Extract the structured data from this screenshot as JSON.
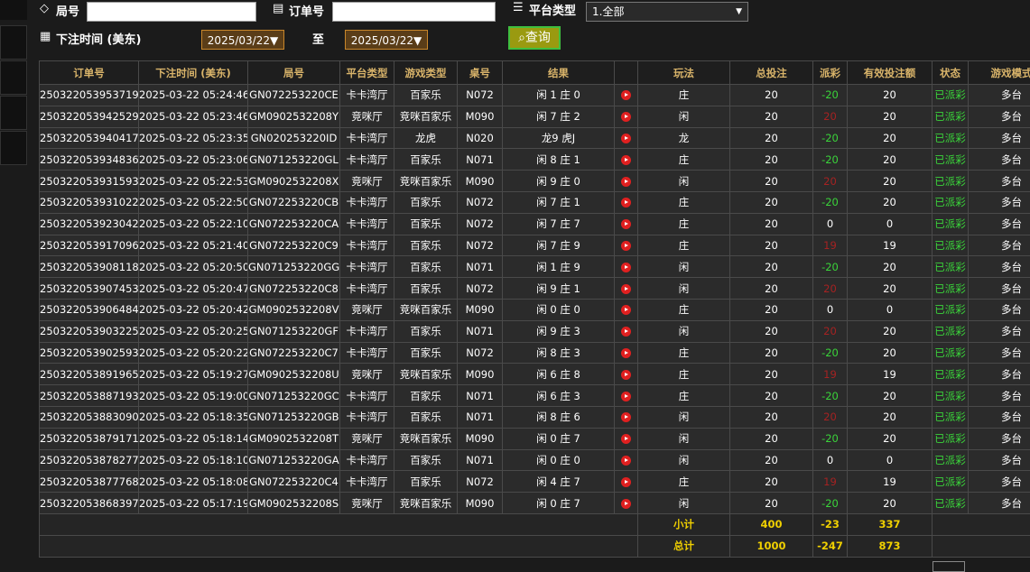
{
  "filters": {
    "round_label": "局号",
    "order_label": "订单号",
    "platform_label": "平台类型",
    "platform_value": "1.全部",
    "time_label": "下注时间 (美东)",
    "date_from": "2025/03/22▼",
    "to_label": "至",
    "date_to": "2025/03/22▼",
    "query_button": "查询"
  },
  "table": {
    "headers": [
      "订单号",
      "下注时间 (美东)",
      "局号",
      "平台类型",
      "游戏类型",
      "桌号",
      "结果",
      "玩法",
      "总投注",
      "派彩",
      "有效投注额",
      "状态",
      "游戏模式"
    ],
    "rows": [
      [
        "250322053953719",
        "2025-03-22 05:24:46",
        "GN072253220CE",
        "卡卡湾厅",
        "百家乐",
        "N072",
        "闲 1 庄 0",
        "庄",
        20,
        -20,
        20,
        "已派彩",
        "多台"
      ],
      [
        "250322053942529",
        "2025-03-22 05:23:46",
        "GM0902532208Y",
        "竞咪厅",
        "竞咪百家乐",
        "M090",
        "闲 7 庄 2",
        "闲",
        20,
        20,
        20,
        "已派彩",
        "多台"
      ],
      [
        "250322053940417",
        "2025-03-22 05:23:35",
        "GN020253220ID",
        "卡卡湾厅",
        "龙虎",
        "N020",
        "龙9 虎J",
        "龙",
        20,
        -20,
        20,
        "已派彩",
        "多台"
      ],
      [
        "250322053934836",
        "2025-03-22 05:23:06",
        "GN071253220GL",
        "卡卡湾厅",
        "百家乐",
        "N071",
        "闲 8 庄 1",
        "庄",
        20,
        -20,
        20,
        "已派彩",
        "多台"
      ],
      [
        "250322053931593",
        "2025-03-22 05:22:53",
        "GM0902532208X",
        "竞咪厅",
        "竞咪百家乐",
        "M090",
        "闲 9 庄 0",
        "闲",
        20,
        20,
        20,
        "已派彩",
        "多台"
      ],
      [
        "250322053931022",
        "2025-03-22 05:22:50",
        "GN072253220CB",
        "卡卡湾厅",
        "百家乐",
        "N072",
        "闲 7 庄 1",
        "庄",
        20,
        -20,
        20,
        "已派彩",
        "多台"
      ],
      [
        "250322053923042",
        "2025-03-22 05:22:10",
        "GN072253220CA",
        "卡卡湾厅",
        "百家乐",
        "N072",
        "闲 7 庄 7",
        "庄",
        20,
        0,
        0,
        "已派彩",
        "多台"
      ],
      [
        "250322053917096",
        "2025-03-22 05:21:40",
        "GN072253220C9",
        "卡卡湾厅",
        "百家乐",
        "N072",
        "闲 7 庄 9",
        "庄",
        20,
        19,
        19,
        "已派彩",
        "多台"
      ],
      [
        "250322053908118",
        "2025-03-22 05:20:50",
        "GN071253220GG",
        "卡卡湾厅",
        "百家乐",
        "N071",
        "闲 1 庄 9",
        "闲",
        20,
        -20,
        20,
        "已派彩",
        "多台"
      ],
      [
        "250322053907453",
        "2025-03-22 05:20:47",
        "GN072253220C8",
        "卡卡湾厅",
        "百家乐",
        "N072",
        "闲 9 庄 1",
        "闲",
        20,
        20,
        20,
        "已派彩",
        "多台"
      ],
      [
        "250322053906484",
        "2025-03-22 05:20:42",
        "GM0902532208V",
        "竞咪厅",
        "竞咪百家乐",
        "M090",
        "闲 0 庄 0",
        "庄",
        20,
        0,
        0,
        "已派彩",
        "多台"
      ],
      [
        "250322053903225",
        "2025-03-22 05:20:25",
        "GN071253220GF",
        "卡卡湾厅",
        "百家乐",
        "N071",
        "闲 9 庄 3",
        "闲",
        20,
        20,
        20,
        "已派彩",
        "多台"
      ],
      [
        "250322053902593",
        "2025-03-22 05:20:22",
        "GN072253220C7",
        "卡卡湾厅",
        "百家乐",
        "N072",
        "闲 8 庄 3",
        "庄",
        20,
        -20,
        20,
        "已派彩",
        "多台"
      ],
      [
        "250322053891965",
        "2025-03-22 05:19:27",
        "GM0902532208U",
        "竞咪厅",
        "竞咪百家乐",
        "M090",
        "闲 6 庄 8",
        "庄",
        20,
        19,
        19,
        "已派彩",
        "多台"
      ],
      [
        "250322053887193",
        "2025-03-22 05:19:00",
        "GN071253220GC",
        "卡卡湾厅",
        "百家乐",
        "N071",
        "闲 6 庄 3",
        "庄",
        20,
        -20,
        20,
        "已派彩",
        "多台"
      ],
      [
        "250322053883090",
        "2025-03-22 05:18:35",
        "GN071253220GB",
        "卡卡湾厅",
        "百家乐",
        "N071",
        "闲 8 庄 6",
        "闲",
        20,
        20,
        20,
        "已派彩",
        "多台"
      ],
      [
        "250322053879171",
        "2025-03-22 05:18:14",
        "GM0902532208T",
        "竞咪厅",
        "竞咪百家乐",
        "M090",
        "闲 0 庄 7",
        "闲",
        20,
        -20,
        20,
        "已派彩",
        "多台"
      ],
      [
        "250322053878277",
        "2025-03-22 05:18:10",
        "GN071253220GA",
        "卡卡湾厅",
        "百家乐",
        "N071",
        "闲 0 庄 0",
        "闲",
        20,
        0,
        0,
        "已派彩",
        "多台"
      ],
      [
        "250322053877768",
        "2025-03-22 05:18:08",
        "GN072253220C4",
        "卡卡湾厅",
        "百家乐",
        "N072",
        "闲 4 庄 7",
        "庄",
        20,
        19,
        19,
        "已派彩",
        "多台"
      ],
      [
        "250322053868397",
        "2025-03-22 05:17:19",
        "GM0902532208S",
        "竞咪厅",
        "竞咪百家乐",
        "M090",
        "闲 0 庄 7",
        "闲",
        20,
        -20,
        20,
        "已派彩",
        "多台"
      ]
    ],
    "subtotal": {
      "label": "小计",
      "bet": 400,
      "payout": -23,
      "valid": 337
    },
    "total": {
      "label": "总计",
      "bet": 1000,
      "payout": -247,
      "valid": 873
    }
  }
}
